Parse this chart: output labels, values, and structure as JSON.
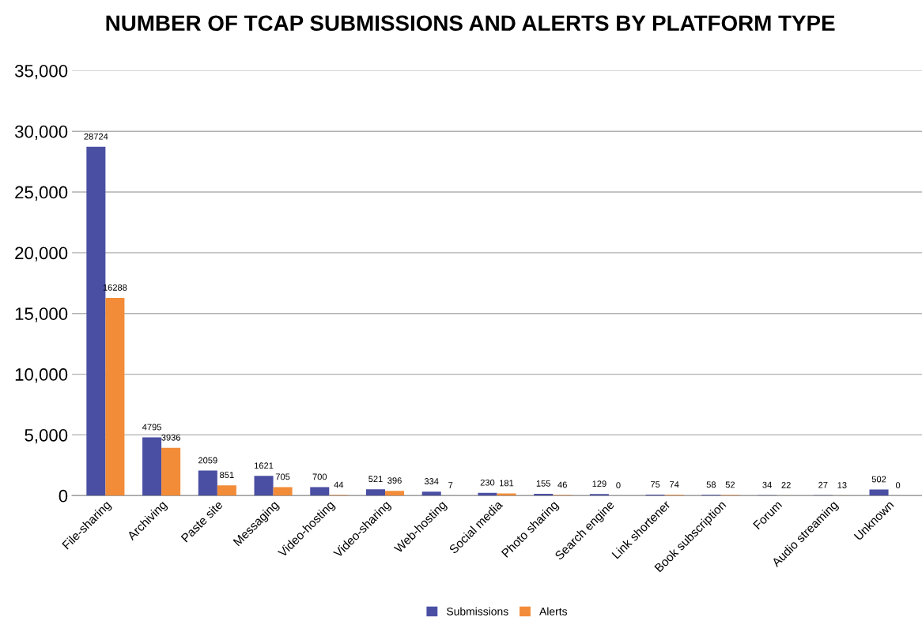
{
  "chart_data": {
    "type": "bar",
    "title": "NUMBER OF TCAP SUBMISSIONS AND ALERTS BY PLATFORM TYPE",
    "categories": [
      "File-sharing",
      "Archiving",
      "Paste site",
      "Messaging",
      "Video-hosting",
      "Video-sharing",
      "Web-hosting",
      "Social media",
      "Photo sharing",
      "Search engine",
      "Link shortener",
      "Book subscription",
      "Forum",
      "Audio streaming",
      "Unknown"
    ],
    "series": [
      {
        "name": "Submissions",
        "color": "#4a4fa3",
        "values": [
          28724,
          4795,
          2059,
          1621,
          700,
          521,
          334,
          230,
          155,
          129,
          75,
          58,
          34,
          27,
          502
        ]
      },
      {
        "name": "Alerts",
        "color": "#f28c38",
        "values": [
          16288,
          3936,
          851,
          705,
          44,
          396,
          7,
          181,
          46,
          0,
          74,
          52,
          22,
          13,
          0
        ]
      }
    ],
    "ylim": [
      0,
      35000
    ],
    "yticks": [
      0,
      {
        "value": 5000,
        "label": "5,000"
      },
      {
        "value": 10000,
        "label": "10,000"
      },
      {
        "value": 15000,
        "label": "15,000"
      },
      {
        "value": 20000,
        "label": "20,000"
      },
      {
        "value": 25000,
        "label": "25,000"
      },
      {
        "value": 30000,
        "label": "30,000"
      },
      {
        "value": 35000,
        "label": "35,000"
      }
    ],
    "grid": "y",
    "legend": "bottom",
    "data_labels": true
  }
}
